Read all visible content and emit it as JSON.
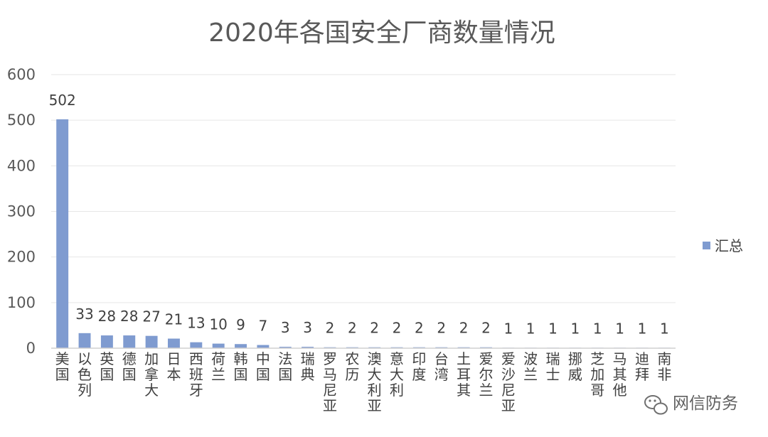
{
  "chart_data": {
    "type": "bar",
    "title": "2020年各国安全厂商数量情况",
    "categories": [
      "美国",
      "以色列",
      "英国",
      "德国",
      "加拿大",
      "日本",
      "西班牙",
      "荷兰",
      "韩国",
      "中国",
      "法国",
      "瑞典",
      "罗马尼亚",
      "农历",
      "澳大利亚",
      "意大利",
      "印度",
      "台湾",
      "土耳其",
      "爱尔兰",
      "爱沙尼亚",
      "波兰",
      "瑞士",
      "挪威",
      "芝加哥",
      "马其他",
      "迪拜",
      "南非"
    ],
    "series": [
      {
        "name": "汇总",
        "color": "#7f9bd0",
        "values": [
          502,
          33,
          28,
          28,
          27,
          21,
          13,
          10,
          9,
          7,
          3,
          3,
          2,
          2,
          2,
          2,
          2,
          2,
          2,
          2,
          1,
          1,
          1,
          1,
          1,
          1,
          1,
          1
        ]
      }
    ],
    "ylim": [
      0,
      600
    ],
    "yticks": [
      0,
      100,
      200,
      300,
      400,
      500,
      600
    ],
    "grid": true,
    "legend_position": "right",
    "data_labels": true
  },
  "watermark": {
    "text": "网信防务",
    "icon": "wechat-icon"
  }
}
